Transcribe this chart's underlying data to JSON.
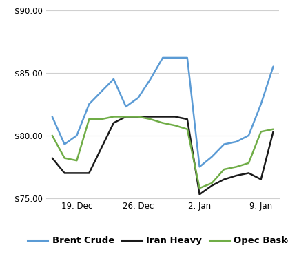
{
  "ylim": [
    75.0,
    90.0
  ],
  "yticks": [
    75.0,
    80.0,
    85.0,
    90.0
  ],
  "xtick_labels": [
    "19. Dec",
    "26. Dec",
    "2. Jan",
    "9. Jan"
  ],
  "xtick_positions": [
    2,
    7,
    12,
    17
  ],
  "background_color": "#ffffff",
  "grid_color": "#d0d0d0",
  "series": {
    "Brent Crude": {
      "color": "#5b9bd5",
      "linewidth": 1.8,
      "x": [
        0,
        1,
        2,
        3,
        4,
        5,
        6,
        7,
        8,
        9,
        10,
        11,
        12,
        13,
        14,
        15,
        16,
        17,
        18
      ],
      "y": [
        81.5,
        79.3,
        80.0,
        82.5,
        83.5,
        84.5,
        82.3,
        83.0,
        84.5,
        86.2,
        86.2,
        86.2,
        77.5,
        78.3,
        79.3,
        79.5,
        80.0,
        82.5,
        85.5
      ]
    },
    "Iran Heavy": {
      "color": "#1a1a1a",
      "linewidth": 1.8,
      "x": [
        0,
        1,
        2,
        3,
        4,
        5,
        6,
        7,
        8,
        9,
        10,
        11,
        12,
        13,
        14,
        15,
        16,
        17,
        18
      ],
      "y": [
        78.2,
        77.0,
        77.0,
        77.0,
        79.0,
        81.0,
        81.5,
        81.5,
        81.5,
        81.5,
        81.5,
        81.3,
        75.3,
        76.0,
        76.5,
        76.8,
        77.0,
        76.5,
        80.3
      ]
    },
    "Opec Basket": {
      "color": "#70ad47",
      "linewidth": 1.8,
      "x": [
        0,
        1,
        2,
        3,
        4,
        5,
        6,
        7,
        8,
        9,
        10,
        11,
        12,
        13,
        14,
        15,
        16,
        17,
        18
      ],
      "y": [
        80.0,
        78.2,
        78.0,
        81.3,
        81.3,
        81.5,
        81.5,
        81.5,
        81.3,
        81.0,
        80.8,
        80.5,
        75.8,
        76.2,
        77.3,
        77.5,
        77.8,
        80.3,
        80.5
      ]
    }
  },
  "legend_entries": [
    {
      "label": "Brent Crude",
      "color": "#5b9bd5"
    },
    {
      "label": "Iran Heavy",
      "color": "#1a1a1a"
    },
    {
      "label": "Opec Basket",
      "color": "#70ad47"
    }
  ],
  "tick_fontsize": 8.5,
  "legend_fontsize": 9.5
}
